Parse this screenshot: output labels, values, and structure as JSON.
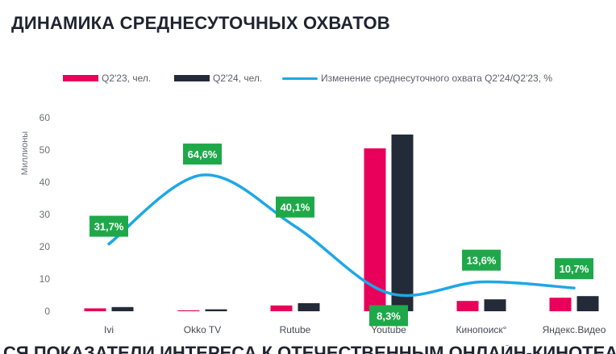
{
  "title": "ДИНАМИКА СРЕДНЕСУТОЧНЫХ ОХВАТОВ",
  "legend": {
    "q23": "Q2'23, чел.",
    "q24": "Q2'24, чел.",
    "change": "Изменение среднесуточного охвата Q2'24/Q2'23, %"
  },
  "colors": {
    "q23": "#e8005a",
    "q24": "#232a38",
    "line": "#1ea7e6",
    "label_bg": "#1fa84a"
  },
  "chart_data": {
    "type": "bar",
    "title": "ДИНАМИКА СРЕДНЕСУТОЧНЫХ ОХВАТОВ",
    "ylabel": "Миллионы",
    "ylim": [
      0,
      60
    ],
    "yticks": [
      0,
      10,
      20,
      30,
      40,
      50,
      60
    ],
    "categories": [
      "Ivi",
      "Okko TV",
      "Rutube",
      "Youtube",
      "Кинопоиск°",
      "Яндекс.Видео"
    ],
    "series": [
      {
        "name": "Q2'23, чел.",
        "values": [
          0.9,
          0.3,
          1.8,
          50.5,
          3.2,
          4.2
        ]
      },
      {
        "name": "Q2'24, чел.",
        "values": [
          1.3,
          0.6,
          2.5,
          54.8,
          3.7,
          4.7
        ]
      }
    ],
    "line_series": {
      "name": "Изменение среднесуточного охвата Q2'24/Q2'23, %",
      "values": [
        31.7,
        64.6,
        40.1,
        8.3,
        13.6,
        10.7
      ],
      "labels": [
        "31,7%",
        "64,6%",
        "40,1%",
        "8,3%",
        "13,6%",
        "10,7%"
      ]
    },
    "grid": false,
    "legend_position": "top"
  },
  "bottom_text": "СЯ ПОКАЗАТЕЛИ ИНТЕРЕСА К ОТЕЧЕСТВЕННЫМ ОНЛАЙН-КИНОТЕАТРАМ"
}
